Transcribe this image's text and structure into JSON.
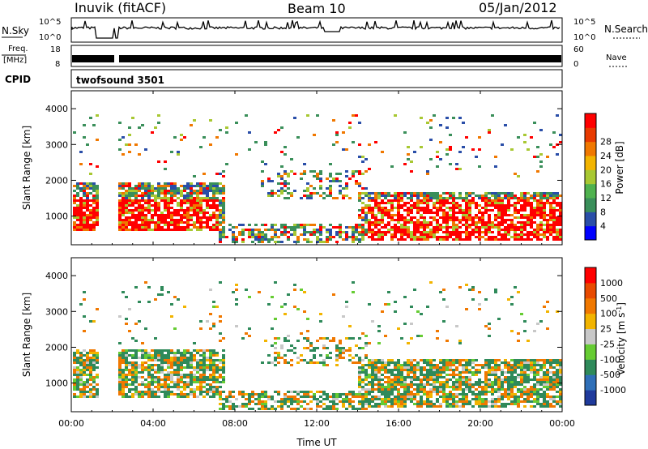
{
  "header": {
    "station": "Inuvik (fitACF)",
    "beam": "Beam 10",
    "date": "05/Jan/2012"
  },
  "chart_data": [
    {
      "type": "line",
      "title": "",
      "left_label": "N.Sky",
      "right_label": "N.Search",
      "left_ticks": [
        "10^5",
        "10^0"
      ],
      "right_ticks": [
        "10^5",
        "10^0"
      ]
    },
    {
      "type": "line",
      "left_label_top": "Freq.",
      "left_label_bottom": "[MHz]",
      "left_ticks": [
        "18",
        "8"
      ],
      "right_label": "Nave",
      "right_ticks": [
        "60",
        "0"
      ],
      "cpid_label": "CPID",
      "cpid_text": "twofsound 3501"
    },
    {
      "type": "heatmap",
      "name": "power",
      "ylabel": "Slant Range [km]",
      "ylim": [
        200,
        4500
      ],
      "yticks": [
        "1000",
        "2000",
        "3000",
        "4000"
      ],
      "colorbar_label": "Power [dB]",
      "colorbar_ticks": [
        "4",
        "8",
        "12",
        "16",
        "20",
        "24",
        "28"
      ],
      "colorbar_colors": [
        "#0000ff",
        "#2a4ea8",
        "#3a8f5a",
        "#4fb24f",
        "#a8c832",
        "#f2b400",
        "#f07800",
        "#e83a00",
        "#ff0000"
      ]
    },
    {
      "type": "heatmap",
      "name": "velocity",
      "ylabel": "Slant Range [km]",
      "ylim": [
        200,
        4500
      ],
      "yticks": [
        "1000",
        "2000",
        "3000",
        "4000"
      ],
      "colorbar_label": "Velocity [m s",
      "colorbar_label_exp": "-1",
      "colorbar_label_end": "]",
      "colorbar_ticks": [
        "1000",
        "500",
        "100",
        "25",
        "-25",
        "-100",
        "-500",
        "-1000"
      ],
      "colorbar_colors": [
        "#1f3a9c",
        "#2f6fb8",
        "#2f8a5a",
        "#66cc33",
        "#c8c8c8",
        "#f2b400",
        "#f07800",
        "#e84a00",
        "#ff0000"
      ]
    }
  ],
  "xaxis": {
    "label": "Time UT",
    "ticks": [
      "00:00",
      "04:00",
      "08:00",
      "12:00",
      "16:00",
      "20:00",
      "00:00"
    ]
  }
}
